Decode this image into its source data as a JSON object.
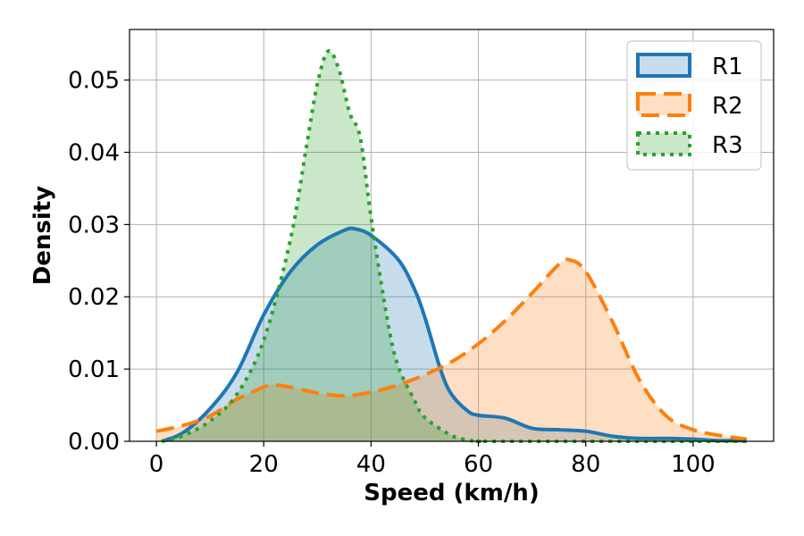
{
  "chart_data": {
    "type": "area",
    "title": "",
    "xlabel": "Speed (km/h)",
    "ylabel": "Density",
    "xlim": [
      -5,
      115
    ],
    "ylim": [
      0,
      0.057
    ],
    "xticks": [
      0,
      20,
      40,
      60,
      80,
      100
    ],
    "yticks": [
      0.0,
      0.01,
      0.02,
      0.03,
      0.04,
      0.05
    ],
    "xtick_labels": [
      "0",
      "20",
      "40",
      "60",
      "80",
      "100"
    ],
    "ytick_labels": [
      "0.00",
      "0.01",
      "0.02",
      "0.03",
      "0.04",
      "0.05"
    ],
    "grid": true,
    "legend_position": "top-right",
    "series": [
      {
        "name": "R1",
        "color": "#1f77b4",
        "line_style": "solid",
        "x": [
          1,
          5,
          10,
          15,
          20,
          25,
          30,
          35,
          37,
          40,
          45,
          48,
          50,
          53,
          55,
          58,
          60,
          65,
          70,
          75,
          80,
          85,
          90,
          95,
          100,
          105,
          110
        ],
        "y": [
          0.0,
          0.0012,
          0.0045,
          0.0095,
          0.0175,
          0.0235,
          0.0272,
          0.0292,
          0.0294,
          0.0285,
          0.0252,
          0.0212,
          0.0172,
          0.0098,
          0.0065,
          0.0042,
          0.0036,
          0.0032,
          0.0018,
          0.0016,
          0.0014,
          0.0007,
          0.0004,
          0.0004,
          0.0003,
          0.0001,
          0.0001
        ]
      },
      {
        "name": "R2",
        "color": "#ff7f0e",
        "line_style": "dashed",
        "x": [
          0,
          5,
          10,
          15,
          20,
          22,
          25,
          30,
          35,
          40,
          45,
          50,
          55,
          60,
          65,
          70,
          75,
          77,
          80,
          85,
          90,
          95,
          100,
          105,
          110
        ],
        "y": [
          0.0014,
          0.0022,
          0.0035,
          0.0058,
          0.0075,
          0.0078,
          0.0075,
          0.0067,
          0.0063,
          0.0068,
          0.0078,
          0.0092,
          0.011,
          0.0135,
          0.0167,
          0.0205,
          0.0245,
          0.0251,
          0.0235,
          0.0165,
          0.0085,
          0.0035,
          0.0016,
          0.0008,
          0.0003
        ]
      },
      {
        "name": "R3",
        "color": "#2ca02c",
        "line_style": "dotted",
        "x": [
          1,
          5,
          10,
          15,
          20,
          25,
          28,
          30,
          32,
          34,
          36,
          38,
          40,
          43,
          45,
          48,
          50,
          55,
          58,
          60,
          65,
          110
        ],
        "y": [
          0.0,
          0.0008,
          0.0028,
          0.0065,
          0.014,
          0.028,
          0.041,
          0.0495,
          0.054,
          0.0515,
          0.0455,
          0.042,
          0.031,
          0.017,
          0.0105,
          0.0058,
          0.0033,
          0.0008,
          0.0002,
          0.0,
          0.0,
          0.0
        ]
      }
    ]
  }
}
